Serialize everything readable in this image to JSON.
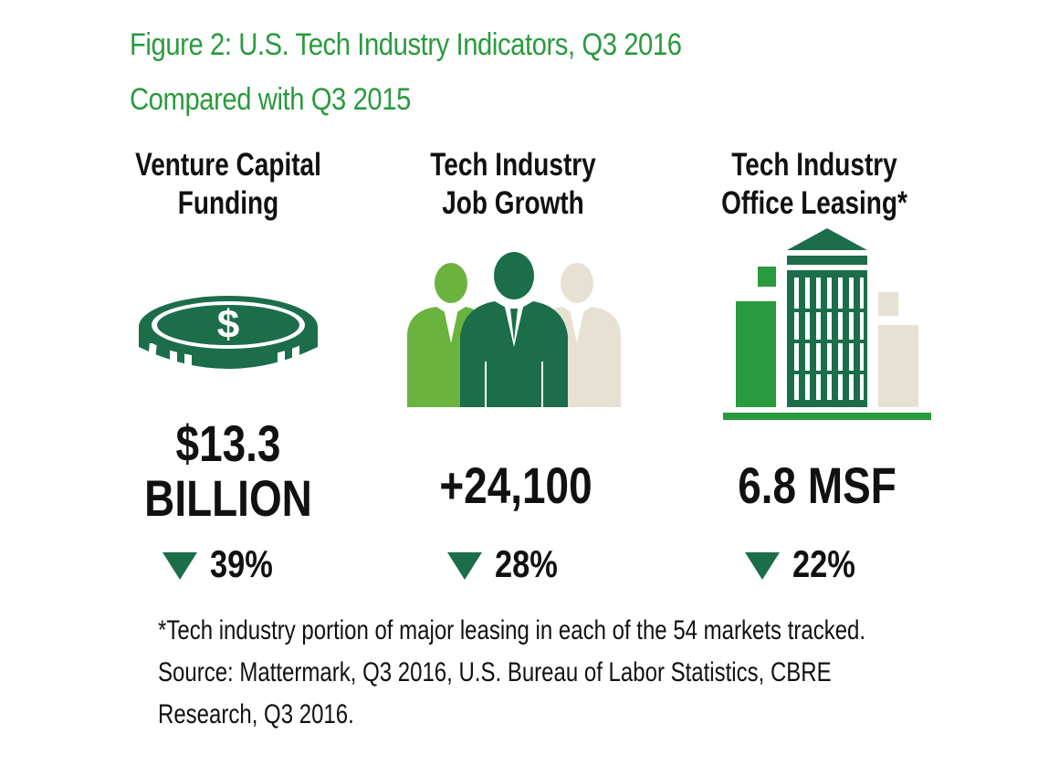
{
  "title": "Figure 2: U.S. Tech Industry Indicators, Q3 2016",
  "subtitle": "Compared with Q3 2015",
  "colors": {
    "accent_green": "#2a9a3e",
    "dark_green": "#1c6e4b",
    "light_green": "#6ab33f",
    "beige": "#e6e1d2"
  },
  "indicators": [
    {
      "heading_line1": "Venture Capital",
      "heading_line2": "Funding",
      "icon": "coin-dollar-icon",
      "value_line1": "$13.3",
      "value_line2": "BILLION",
      "change_direction": "down",
      "change": "39%"
    },
    {
      "heading_line1": "Tech Industry",
      "heading_line2": "Job Growth",
      "icon": "people-group-icon",
      "value_line1": "+24,100",
      "change_direction": "down",
      "change": "28%"
    },
    {
      "heading_line1": "Tech Industry",
      "heading_line2": "Office Leasing*",
      "icon": "office-building-icon",
      "value_line1": "6.8 MSF",
      "change_direction": "down",
      "change": "22%"
    }
  ],
  "footnote": {
    "line1": "*Tech industry portion of major leasing in each of the 54 markets tracked.",
    "line2": "Source: Mattermark, Q3 2016, U.S. Bureau of Labor Statistics, CBRE",
    "line3": "Research, Q3 2016."
  }
}
